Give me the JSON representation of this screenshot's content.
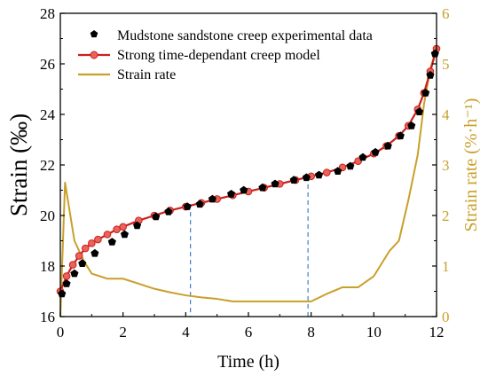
{
  "chart_data": {
    "type": "line",
    "xlabel": "Time (h)",
    "ylabel": "Strain (‰)",
    "y2label": "Strain rate (%·h⁻¹)",
    "xlim": [
      0,
      12
    ],
    "ylim": [
      16,
      28
    ],
    "y2lim": [
      0,
      6
    ],
    "xticks": [
      "0",
      "2",
      "4",
      "6",
      "8",
      "10",
      "12"
    ],
    "yticks": [
      "16",
      "18",
      "20",
      "22",
      "24",
      "26",
      "28"
    ],
    "y2ticks": [
      "0",
      "1",
      "2",
      "3",
      "4",
      "5",
      "6"
    ],
    "grid": false,
    "legend_position": "top-left",
    "colors": {
      "experimental": "#000000",
      "model": "#cc1f1f",
      "model_marker": "#e8645a",
      "rate": "#c8a02a",
      "guide": "#3d7cc9",
      "axis": "#000000"
    },
    "series": [
      {
        "name": "Mudstone sandstone creep experimental data",
        "axis": "left",
        "style": "pentagon-markers",
        "x": [
          0.05,
          0.2,
          0.45,
          0.7,
          1.1,
          1.65,
          2.05,
          2.45,
          3.05,
          3.45,
          4.05,
          4.45,
          4.85,
          5.45,
          5.85,
          6.45,
          6.85,
          7.45,
          7.85,
          8.25,
          8.85,
          9.25,
          9.65,
          10.05,
          10.45,
          10.85,
          11.2,
          11.45,
          11.65,
          11.8,
          11.95
        ],
        "y": [
          16.9,
          17.3,
          17.7,
          18.1,
          18.5,
          18.95,
          19.25,
          19.6,
          19.95,
          20.15,
          20.35,
          20.45,
          20.65,
          20.85,
          21.0,
          21.1,
          21.25,
          21.4,
          21.5,
          21.6,
          21.75,
          21.95,
          22.3,
          22.5,
          22.75,
          23.15,
          23.55,
          24.1,
          24.85,
          25.55,
          26.4
        ]
      },
      {
        "name": "Strong time-dependant creep model",
        "axis": "left",
        "style": "line-with-circle-markers",
        "x": [
          0.0,
          0.2,
          0.4,
          0.6,
          0.8,
          1.0,
          1.2,
          1.5,
          1.8,
          2.0,
          2.5,
          3.0,
          3.5,
          4.0,
          4.5,
          5.0,
          5.5,
          6.0,
          6.5,
          7.0,
          7.5,
          8.0,
          8.5,
          9.0,
          9.5,
          10.0,
          10.4,
          10.8,
          11.1,
          11.4,
          11.6,
          11.8,
          12.0
        ],
        "y": [
          17.0,
          17.6,
          18.05,
          18.4,
          18.7,
          18.9,
          19.05,
          19.25,
          19.45,
          19.55,
          19.8,
          20.0,
          20.2,
          20.35,
          20.5,
          20.65,
          20.8,
          20.95,
          21.1,
          21.25,
          21.4,
          21.55,
          21.7,
          21.9,
          22.15,
          22.45,
          22.75,
          23.15,
          23.55,
          24.2,
          24.85,
          25.7,
          26.6
        ]
      },
      {
        "name": "Strain rate",
        "axis": "right",
        "style": "line",
        "x": [
          0.0,
          0.15,
          0.45,
          0.75,
          1.0,
          1.5,
          2.0,
          2.5,
          3.0,
          3.5,
          4.0,
          4.5,
          5.0,
          5.5,
          6.0,
          6.5,
          7.0,
          7.5,
          8.0,
          8.5,
          9.0,
          9.5,
          10.0,
          10.5,
          10.8,
          11.1,
          11.4,
          11.6,
          11.8,
          12.0
        ],
        "y": [
          0.0,
          2.65,
          1.5,
          1.1,
          0.85,
          0.75,
          0.75,
          0.65,
          0.55,
          0.48,
          0.42,
          0.38,
          0.35,
          0.3,
          0.3,
          0.3,
          0.3,
          0.3,
          0.3,
          0.45,
          0.58,
          0.58,
          0.8,
          1.3,
          1.5,
          2.3,
          3.2,
          4.2,
          4.9,
          5.3
        ]
      }
    ],
    "guides": [
      {
        "x": 4.15,
        "y": 20.45
      },
      {
        "x": 7.9,
        "y": 21.55
      }
    ]
  }
}
